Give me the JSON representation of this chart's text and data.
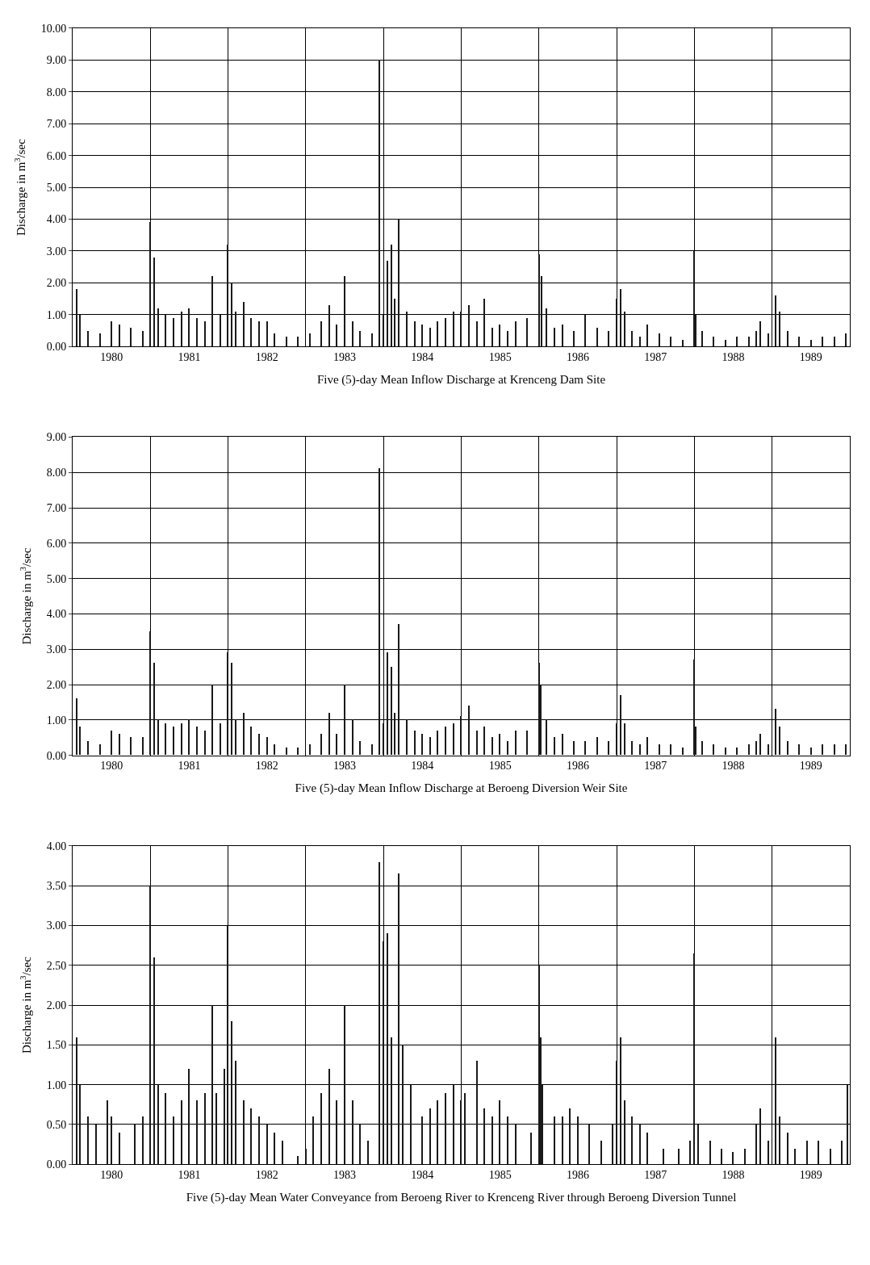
{
  "chart_data": [
    {
      "type": "bar",
      "xlabel": "Five (5)-day Mean Inflow Discharge at Krenceng Dam Site",
      "ylabel": "Discharge in m$^{3}$/sec",
      "grid": true,
      "color": "#1a1a1a",
      "x": [
        1980.05,
        1980.1,
        1980.2,
        1980.35,
        1980.5,
        1980.6,
        1980.75,
        1980.9,
        1981.0,
        1981.05,
        1981.1,
        1981.2,
        1981.3,
        1981.4,
        1981.5,
        1981.6,
        1981.7,
        1981.8,
        1981.9,
        1982.0,
        1982.05,
        1982.1,
        1982.2,
        1982.3,
        1982.4,
        1982.5,
        1982.6,
        1982.75,
        1982.9,
        1983.05,
        1983.2,
        1983.3,
        1983.4,
        1983.5,
        1983.6,
        1983.7,
        1983.85,
        1983.95,
        1984.0,
        1984.05,
        1984.1,
        1984.15,
        1984.2,
        1984.3,
        1984.4,
        1984.5,
        1984.6,
        1984.7,
        1984.8,
        1984.9,
        1985.0,
        1985.1,
        1985.2,
        1985.3,
        1985.4,
        1985.5,
        1985.6,
        1985.7,
        1985.85,
        1986.0,
        1986.03,
        1986.1,
        1986.2,
        1986.3,
        1986.45,
        1986.6,
        1986.75,
        1986.9,
        1987.0,
        1987.05,
        1987.1,
        1987.2,
        1987.3,
        1987.4,
        1987.55,
        1987.7,
        1987.85,
        1988.0,
        1988.02,
        1988.1,
        1988.25,
        1988.4,
        1988.55,
        1988.7,
        1988.8,
        1988.85,
        1988.95,
        1989.05,
        1989.1,
        1989.2,
        1989.35,
        1989.5,
        1989.65,
        1989.8,
        1989.95
      ],
      "values": [
        1.8,
        1.0,
        0.5,
        0.4,
        0.8,
        0.7,
        0.6,
        0.5,
        3.9,
        2.8,
        1.2,
        1.0,
        0.9,
        1.1,
        1.2,
        0.9,
        0.8,
        2.2,
        1.0,
        3.2,
        2.0,
        1.1,
        1.4,
        0.9,
        0.8,
        0.8,
        0.4,
        0.3,
        0.3,
        0.4,
        0.8,
        1.3,
        0.7,
        2.2,
        0.8,
        0.5,
        0.4,
        9.0,
        1.0,
        2.7,
        3.2,
        1.5,
        4.0,
        1.1,
        0.8,
        0.7,
        0.6,
        0.8,
        0.9,
        1.1,
        1.1,
        1.3,
        0.8,
        1.5,
        0.6,
        0.7,
        0.5,
        0.8,
        0.9,
        2.9,
        2.2,
        1.2,
        0.6,
        0.7,
        0.5,
        1.0,
        0.6,
        0.5,
        1.5,
        1.8,
        1.1,
        0.5,
        0.3,
        0.7,
        0.4,
        0.3,
        0.2,
        3.0,
        1.0,
        0.5,
        0.3,
        0.2,
        0.3,
        0.3,
        0.5,
        0.8,
        0.4,
        1.6,
        1.1,
        0.5,
        0.3,
        0.2,
        0.3,
        0.3,
        0.4
      ],
      "xlim": [
        1980,
        1990
      ],
      "xticks": [
        {
          "value": 1980.5,
          "label": "1980"
        },
        {
          "value": 1981,
          "label": null
        },
        {
          "value": 1981.5,
          "label": "1981"
        },
        {
          "value": 1982,
          "label": null
        },
        {
          "value": 1982.5,
          "label": "1982"
        },
        {
          "value": 1983,
          "label": null
        },
        {
          "value": 1983.5,
          "label": "1983"
        },
        {
          "value": 1984,
          "label": null
        },
        {
          "value": 1984.5,
          "label": "1984"
        },
        {
          "value": 1985,
          "label": null
        },
        {
          "value": 1985.5,
          "label": "1985"
        },
        {
          "value": 1986,
          "label": null
        },
        {
          "value": 1986.5,
          "label": "1986"
        },
        {
          "value": 1987,
          "label": null
        },
        {
          "value": 1987.5,
          "label": "1987"
        },
        {
          "value": 1988,
          "label": null
        },
        {
          "value": 1988.5,
          "label": "1988"
        },
        {
          "value": 1989,
          "label": null
        },
        {
          "value": 1989.5,
          "label": "1989"
        }
      ],
      "ylim": [
        0,
        10
      ],
      "yticks": [
        {
          "value": 0,
          "label": "0.00"
        },
        {
          "value": 1,
          "label": "1.00"
        },
        {
          "value": 2,
          "label": "2.00"
        },
        {
          "value": 3,
          "label": "3.00"
        },
        {
          "value": 4,
          "label": "4.00"
        },
        {
          "value": 5,
          "label": "5.00"
        },
        {
          "value": 6,
          "label": "6.00"
        },
        {
          "value": 7,
          "label": "7.00"
        },
        {
          "value": 8,
          "label": "8.00"
        },
        {
          "value": 9,
          "label": "9.00"
        },
        {
          "value": 10,
          "label": "10.00"
        }
      ]
    },
    {
      "type": "bar",
      "xlabel": "Five (5)-day Mean Inflow Discharge at Beroeng Diversion Weir Site",
      "ylabel": "Discharge in m$^{3}$/sec",
      "grid": true,
      "color": "#1a1a1a",
      "x": [
        1980.05,
        1980.1,
        1980.2,
        1980.35,
        1980.5,
        1980.6,
        1980.75,
        1980.9,
        1981.0,
        1981.05,
        1981.1,
        1981.2,
        1981.3,
        1981.4,
        1981.5,
        1981.6,
        1981.7,
        1981.8,
        1981.9,
        1982.0,
        1982.05,
        1982.1,
        1982.2,
        1982.3,
        1982.4,
        1982.5,
        1982.6,
        1982.75,
        1982.9,
        1983.05,
        1983.2,
        1983.3,
        1983.4,
        1983.5,
        1983.6,
        1983.7,
        1983.85,
        1983.95,
        1984.0,
        1984.05,
        1984.1,
        1984.15,
        1984.2,
        1984.3,
        1984.4,
        1984.5,
        1984.6,
        1984.7,
        1984.8,
        1984.9,
        1985.0,
        1985.1,
        1985.2,
        1985.3,
        1985.4,
        1985.5,
        1985.6,
        1985.7,
        1985.85,
        1986.0,
        1986.02,
        1986.1,
        1986.2,
        1986.3,
        1986.45,
        1986.6,
        1986.75,
        1986.9,
        1987.0,
        1987.05,
        1987.1,
        1987.2,
        1987.3,
        1987.4,
        1987.55,
        1987.7,
        1987.85,
        1988.0,
        1988.02,
        1988.1,
        1988.25,
        1988.4,
        1988.55,
        1988.7,
        1988.8,
        1988.85,
        1988.95,
        1989.05,
        1989.1,
        1989.2,
        1989.35,
        1989.5,
        1989.65,
        1989.8,
        1989.95
      ],
      "values": [
        1.6,
        0.8,
        0.4,
        0.3,
        0.7,
        0.6,
        0.5,
        0.5,
        3.5,
        2.6,
        1.0,
        0.9,
        0.8,
        0.9,
        1.0,
        0.8,
        0.7,
        2.0,
        0.9,
        2.9,
        2.6,
        1.0,
        1.2,
        0.8,
        0.6,
        0.5,
        0.3,
        0.2,
        0.2,
        0.3,
        0.6,
        1.2,
        0.6,
        2.0,
        1.0,
        0.4,
        0.3,
        8.1,
        0.9,
        2.9,
        2.5,
        1.2,
        3.7,
        1.0,
        0.7,
        0.6,
        0.5,
        0.7,
        0.8,
        0.9,
        1.1,
        1.4,
        0.7,
        0.8,
        0.5,
        0.6,
        0.4,
        0.7,
        0.7,
        2.6,
        2.0,
        1.0,
        0.5,
        0.6,
        0.4,
        0.4,
        0.5,
        0.4,
        0.9,
        1.7,
        0.9,
        0.4,
        0.3,
        0.5,
        0.3,
        0.3,
        0.2,
        2.7,
        0.8,
        0.4,
        0.3,
        0.2,
        0.2,
        0.3,
        0.4,
        0.6,
        0.3,
        1.3,
        0.8,
        0.4,
        0.3,
        0.2,
        0.3,
        0.3,
        0.3
      ],
      "xlim": [
        1980,
        1990
      ],
      "xticks": [
        {
          "value": 1980.5,
          "label": "1980"
        },
        {
          "value": 1981,
          "label": null
        },
        {
          "value": 1981.5,
          "label": "1981"
        },
        {
          "value": 1982,
          "label": null
        },
        {
          "value": 1982.5,
          "label": "1982"
        },
        {
          "value": 1983,
          "label": null
        },
        {
          "value": 1983.5,
          "label": "1983"
        },
        {
          "value": 1984,
          "label": null
        },
        {
          "value": 1984.5,
          "label": "1984"
        },
        {
          "value": 1985,
          "label": null
        },
        {
          "value": 1985.5,
          "label": "1985"
        },
        {
          "value": 1986,
          "label": null
        },
        {
          "value": 1986.5,
          "label": "1986"
        },
        {
          "value": 1987,
          "label": null
        },
        {
          "value": 1987.5,
          "label": "1987"
        },
        {
          "value": 1988,
          "label": null
        },
        {
          "value": 1988.5,
          "label": "1988"
        },
        {
          "value": 1989,
          "label": null
        },
        {
          "value": 1989.5,
          "label": "1989"
        }
      ],
      "ylim": [
        0,
        9
      ],
      "yticks": [
        {
          "value": 0,
          "label": "0.00"
        },
        {
          "value": 1,
          "label": "1.00"
        },
        {
          "value": 2,
          "label": "2.00"
        },
        {
          "value": 3,
          "label": "3.00"
        },
        {
          "value": 4,
          "label": "4.00"
        },
        {
          "value": 5,
          "label": "5.00"
        },
        {
          "value": 6,
          "label": "6.00"
        },
        {
          "value": 7,
          "label": "7.00"
        },
        {
          "value": 8,
          "label": "8.00"
        },
        {
          "value": 9,
          "label": "9.00"
        }
      ]
    },
    {
      "type": "bar",
      "xlabel": "Five (5)-day Mean Water Conveyance from Beroeng River to Krenceng River through Beroeng Diversion Tunnel",
      "ylabel": "Discharge in m$^{3}$/sec",
      "grid": true,
      "color": "#1a1a1a",
      "x": [
        1980.05,
        1980.1,
        1980.2,
        1980.3,
        1980.45,
        1980.5,
        1980.6,
        1980.8,
        1980.9,
        1981.0,
        1981.05,
        1981.1,
        1981.2,
        1981.3,
        1981.4,
        1981.5,
        1981.6,
        1981.7,
        1981.8,
        1981.85,
        1981.95,
        1982.0,
        1982.05,
        1982.1,
        1982.2,
        1982.3,
        1982.4,
        1982.5,
        1982.6,
        1982.7,
        1982.9,
        1983.0,
        1983.1,
        1983.2,
        1983.3,
        1983.4,
        1983.5,
        1983.6,
        1983.7,
        1983.8,
        1983.95,
        1984.0,
        1984.05,
        1984.1,
        1984.2,
        1984.25,
        1984.35,
        1984.5,
        1984.6,
        1984.7,
        1984.8,
        1984.9,
        1985.0,
        1985.05,
        1985.2,
        1985.3,
        1985.4,
        1985.5,
        1985.6,
        1985.7,
        1985.9,
        1986.0,
        1986.02,
        1986.05,
        1986.2,
        1986.3,
        1986.4,
        1986.5,
        1986.65,
        1986.8,
        1986.95,
        1987.0,
        1987.05,
        1987.1,
        1987.2,
        1987.3,
        1987.4,
        1987.6,
        1987.8,
        1987.95,
        1988.0,
        1988.05,
        1988.2,
        1988.35,
        1988.5,
        1988.65,
        1988.8,
        1988.85,
        1988.95,
        1989.05,
        1989.1,
        1989.2,
        1989.3,
        1989.45,
        1989.6,
        1989.75,
        1989.9,
        1989.97
      ],
      "values": [
        1.6,
        1.0,
        0.6,
        0.5,
        0.8,
        0.6,
        0.4,
        0.5,
        0.6,
        3.5,
        2.6,
        1.0,
        0.9,
        0.6,
        0.8,
        1.2,
        0.8,
        0.9,
        2.0,
        0.9,
        1.2,
        3.0,
        1.8,
        1.3,
        0.8,
        0.7,
        0.6,
        0.5,
        0.4,
        0.3,
        0.1,
        0.2,
        0.6,
        0.9,
        1.2,
        0.8,
        2.0,
        0.8,
        0.5,
        0.3,
        3.8,
        2.8,
        2.9,
        1.6,
        3.65,
        1.5,
        1.0,
        0.6,
        0.7,
        0.8,
        0.9,
        1.0,
        0.8,
        0.9,
        1.3,
        0.7,
        0.6,
        0.8,
        0.6,
        0.5,
        0.4,
        2.5,
        1.6,
        1.0,
        0.6,
        0.6,
        0.7,
        0.6,
        0.5,
        0.3,
        0.5,
        1.3,
        1.6,
        0.8,
        0.6,
        0.5,
        0.4,
        0.2,
        0.2,
        0.3,
        2.65,
        0.5,
        0.3,
        0.2,
        0.15,
        0.2,
        0.5,
        0.7,
        0.3,
        1.6,
        0.6,
        0.4,
        0.2,
        0.3,
        0.3,
        0.2,
        0.3,
        1.0
      ],
      "xlim": [
        1980,
        1990
      ],
      "xticks": [
        {
          "value": 1980.5,
          "label": "1980"
        },
        {
          "value": 1981,
          "label": null
        },
        {
          "value": 1981.5,
          "label": "1981"
        },
        {
          "value": 1982,
          "label": null
        },
        {
          "value": 1982.5,
          "label": "1982"
        },
        {
          "value": 1983,
          "label": null
        },
        {
          "value": 1983.5,
          "label": "1983"
        },
        {
          "value": 1984,
          "label": null
        },
        {
          "value": 1984.5,
          "label": "1984"
        },
        {
          "value": 1985,
          "label": null
        },
        {
          "value": 1985.5,
          "label": "1985"
        },
        {
          "value": 1986,
          "label": null
        },
        {
          "value": 1986.5,
          "label": "1986"
        },
        {
          "value": 1987,
          "label": null
        },
        {
          "value": 1987.5,
          "label": "1987"
        },
        {
          "value": 1988,
          "label": null
        },
        {
          "value": 1988.5,
          "label": "1988"
        },
        {
          "value": 1989,
          "label": null
        },
        {
          "value": 1989.5,
          "label": "1989"
        }
      ],
      "ylim": [
        0,
        4
      ],
      "yticks": [
        {
          "value": 0,
          "label": "0.00"
        },
        {
          "value": 0.5,
          "label": "0.50"
        },
        {
          "value": 1,
          "label": "1.00"
        },
        {
          "value": 1.5,
          "label": "1.50"
        },
        {
          "value": 2,
          "label": "2.00"
        },
        {
          "value": 2.5,
          "label": "2.50"
        },
        {
          "value": 3,
          "label": "3.00"
        },
        {
          "value": 3.5,
          "label": "3.50"
        },
        {
          "value": 4,
          "label": "4.00"
        }
      ]
    }
  ]
}
